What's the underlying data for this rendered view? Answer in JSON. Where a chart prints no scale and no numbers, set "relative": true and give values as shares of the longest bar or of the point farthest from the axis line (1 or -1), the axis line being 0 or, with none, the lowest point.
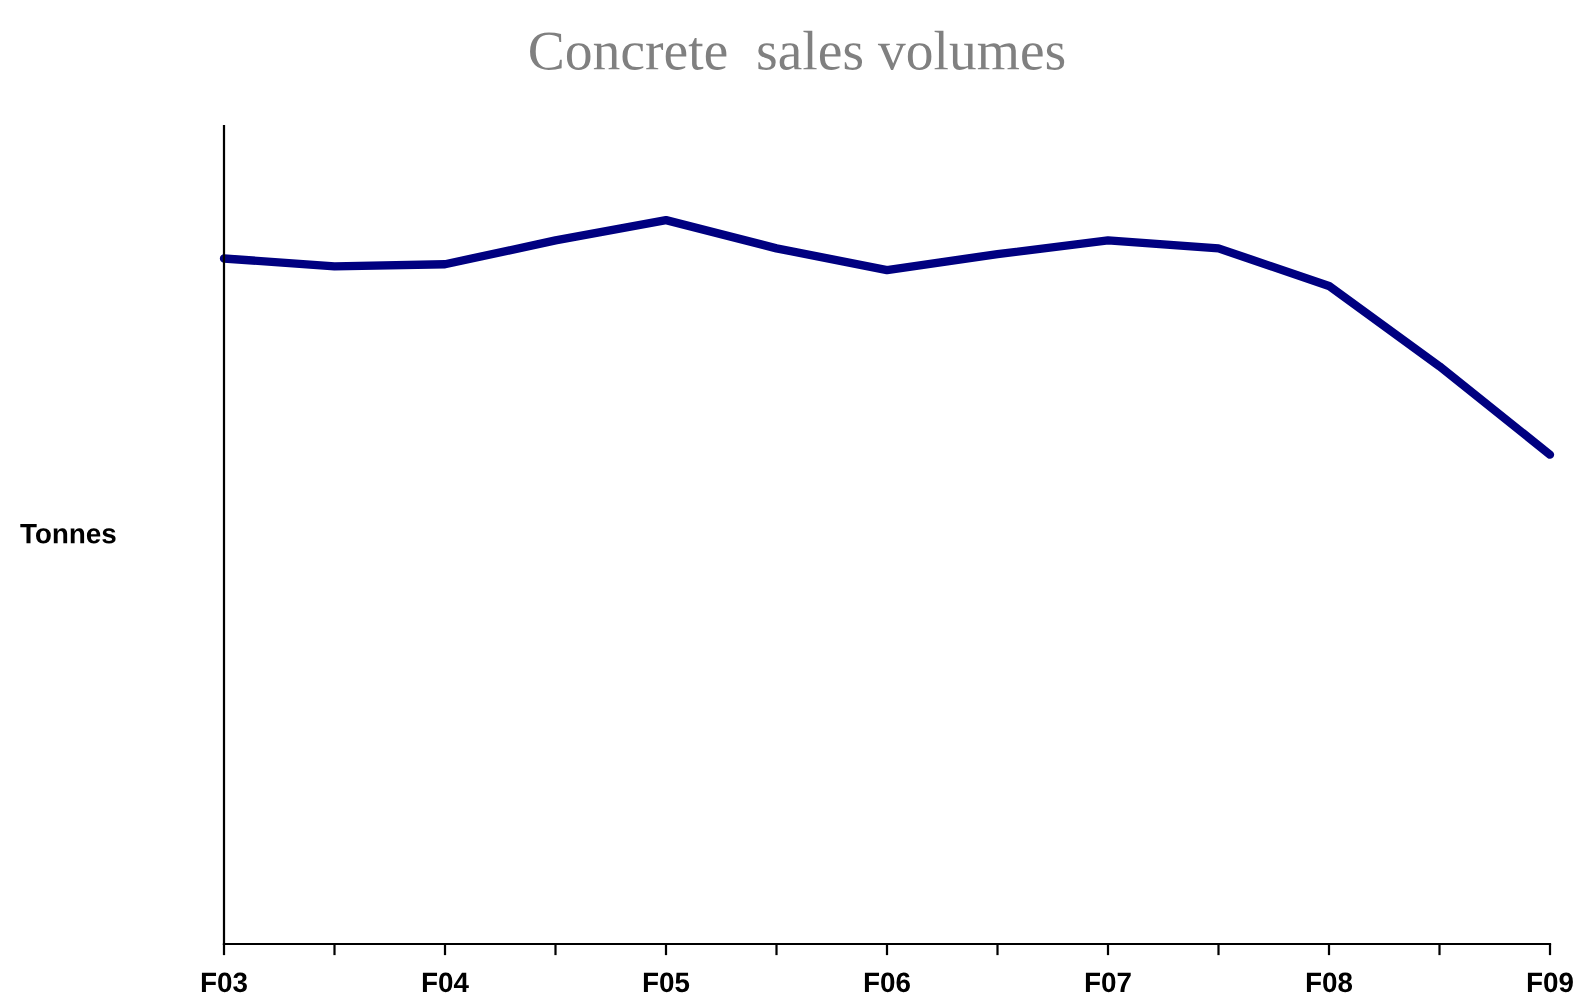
{
  "chart_data": {
    "type": "line",
    "title": "Concrete  sales volumes",
    "ylabel": "Tonnes",
    "relative": true,
    "grid": false,
    "categories": [
      "F03",
      null,
      "F04",
      null,
      "F05",
      null,
      "F06",
      null,
      "F07",
      null,
      "F08",
      null,
      "F09"
    ],
    "series": [
      {
        "color": "#000080",
        "values": [
          0.947,
          0.936,
          0.939,
          0.972,
          1,
          0.961,
          0.931,
          0.953,
          0.972,
          0.961,
          0.909,
          0.798,
          0.676
        ]
      }
    ]
  }
}
